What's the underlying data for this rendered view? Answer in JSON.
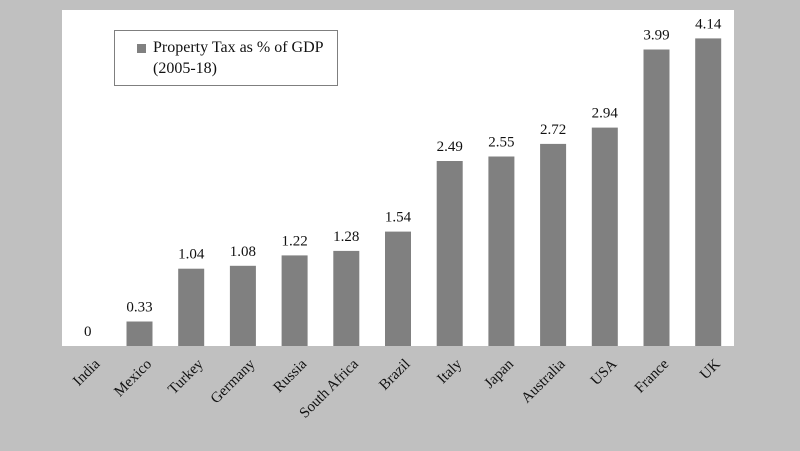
{
  "chart_data": {
    "type": "bar",
    "categories": [
      "India",
      "Mexico",
      "Turkey",
      "Germany",
      "Russia",
      "South Africa",
      "Brazil",
      "Italy",
      "Japan",
      "Australia",
      "USA",
      "France",
      "UK"
    ],
    "series": [
      {
        "name": "Property Tax as % of GDP (2005-18)",
        "values": [
          0,
          0.33,
          1.04,
          1.08,
          1.22,
          1.28,
          1.54,
          2.49,
          2.55,
          2.72,
          2.94,
          3.99,
          4.14
        ]
      }
    ],
    "data_labels": [
      "0",
      "0.33",
      "1.04",
      "1.08",
      "1.22",
      "1.28",
      "1.54",
      "2.49",
      "2.55",
      "2.72",
      "2.94",
      "3.99",
      "4.14"
    ],
    "ylim": [
      0,
      4.5
    ],
    "grid": false,
    "legend_position": "top-left",
    "bar_color": "#808080",
    "plot_background": "#ffffff",
    "figure_background": "#c0c0c0"
  }
}
